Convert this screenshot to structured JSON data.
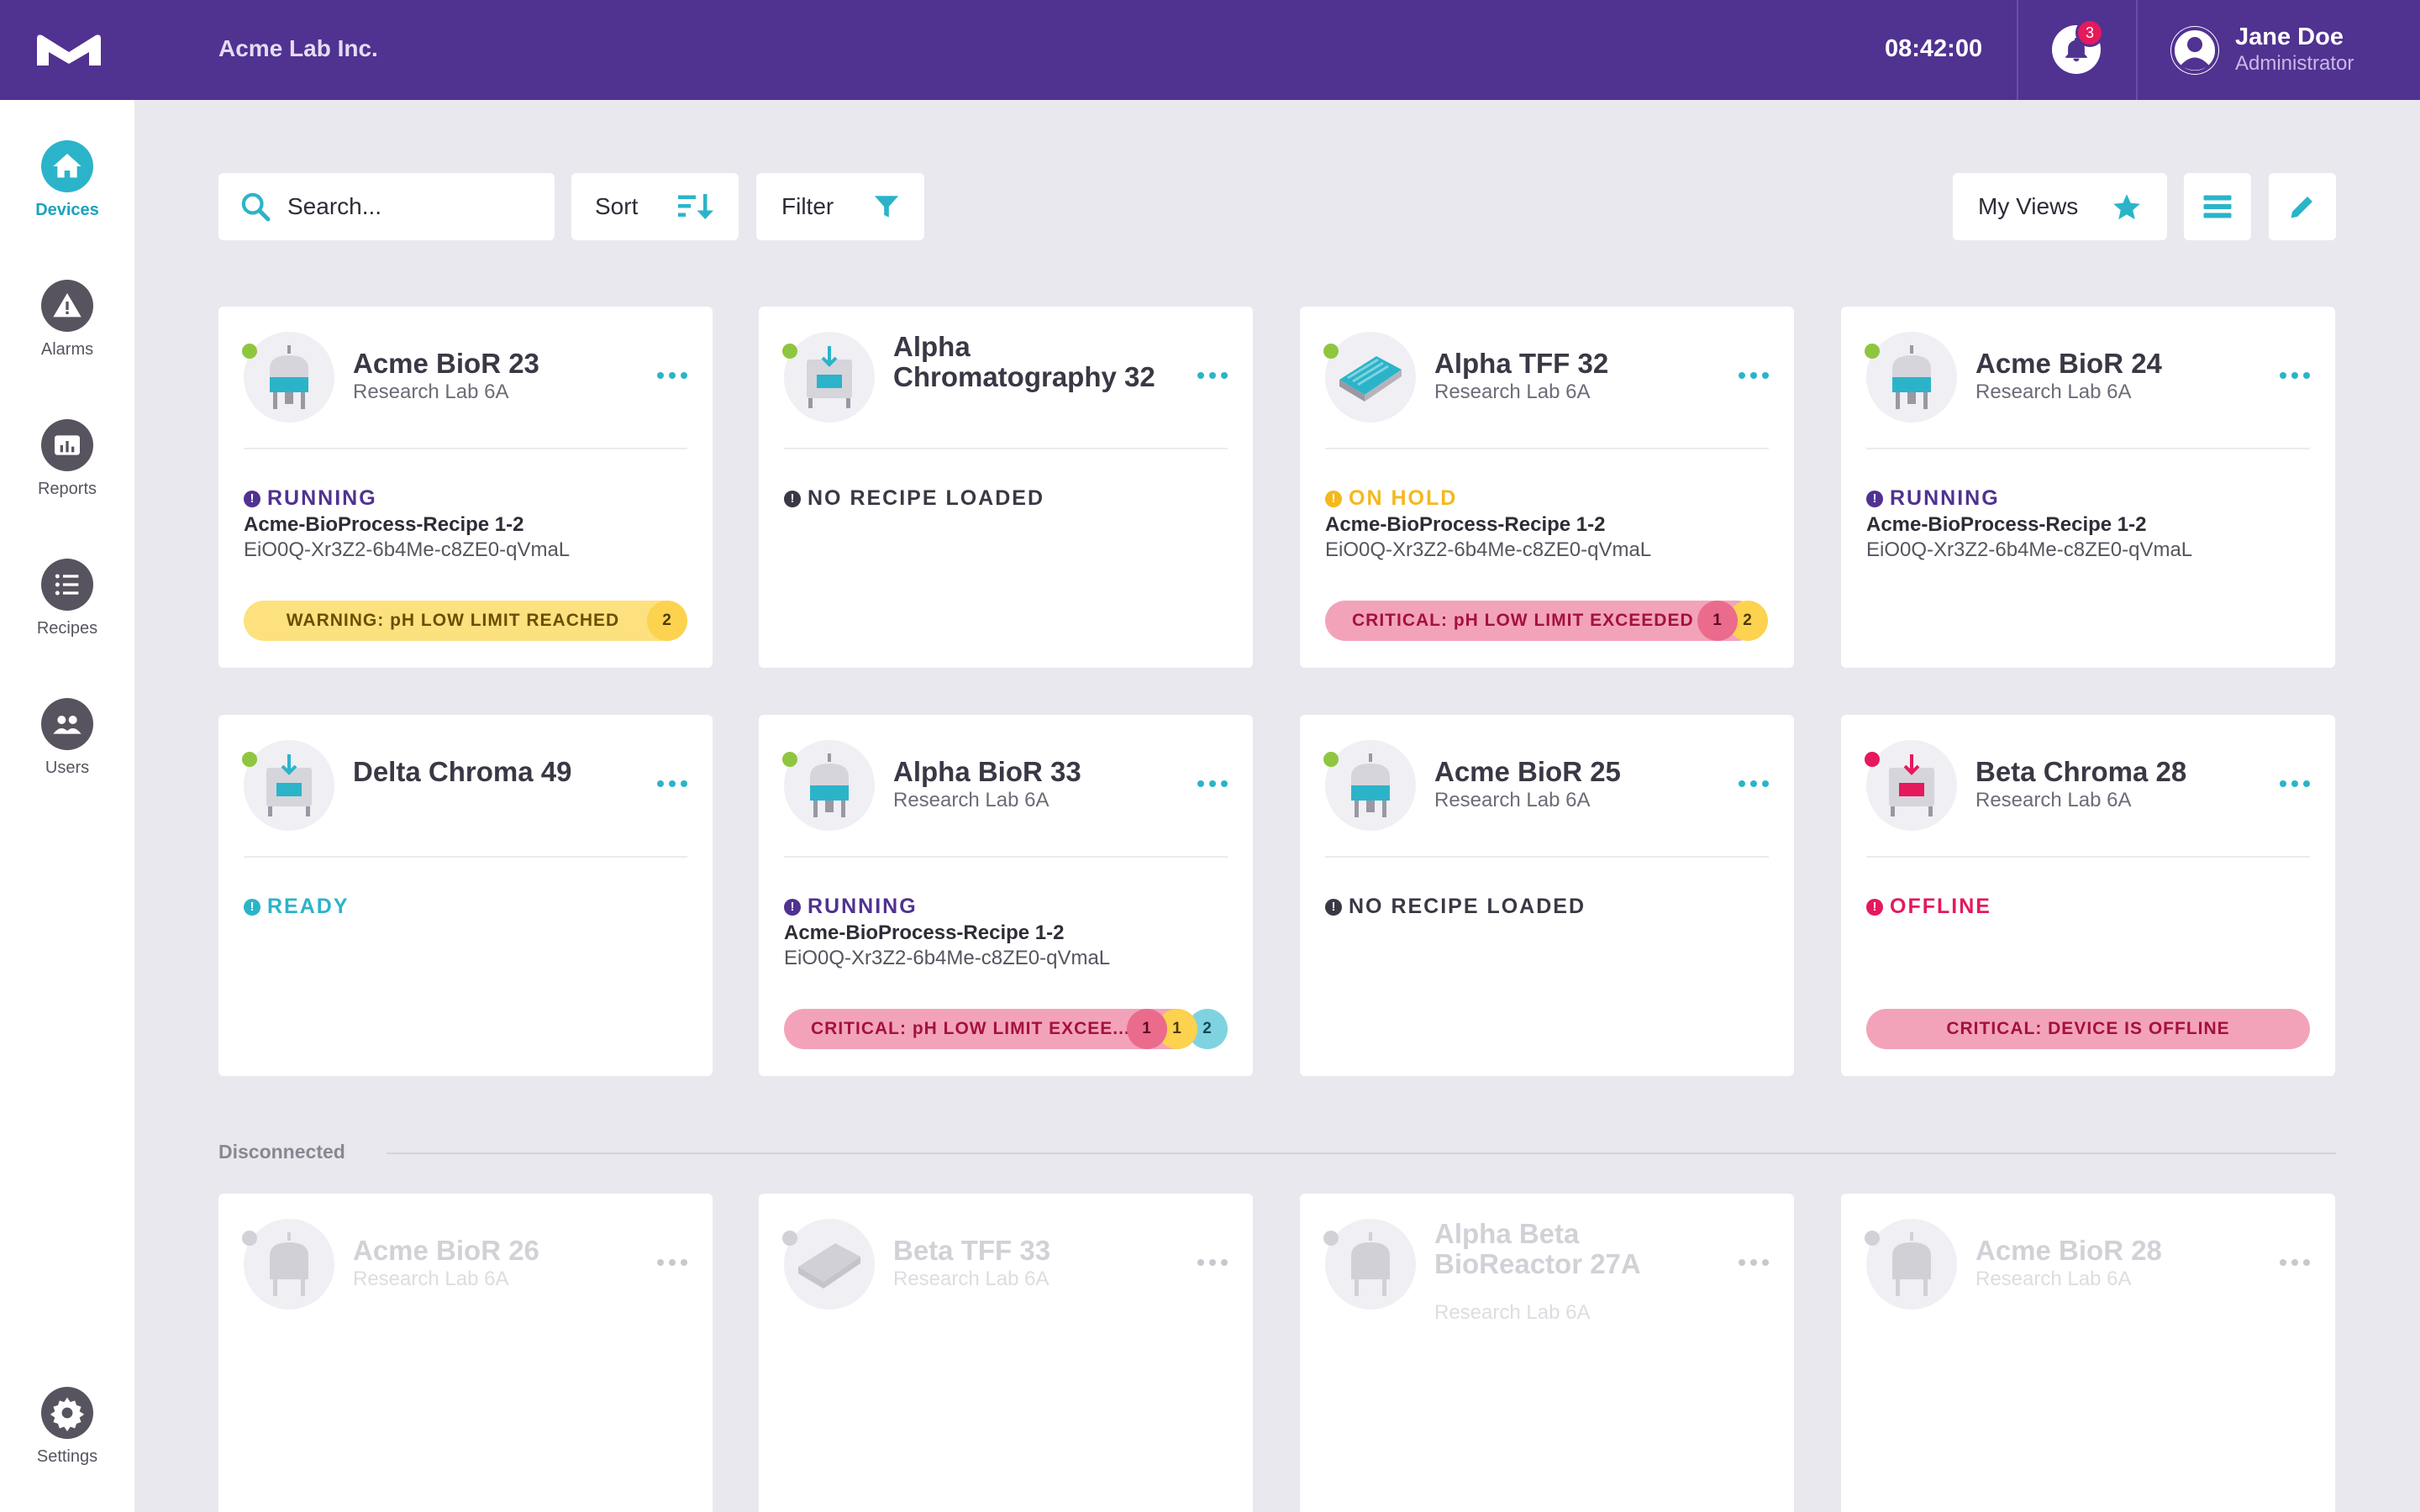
{
  "topbar": {
    "company": "Acme Lab Inc.",
    "time": "08:42:00",
    "notifications_count": "3",
    "user_name": "Jane Doe",
    "user_role": "Administrator"
  },
  "sidebar": {
    "items": [
      {
        "label": "Devices",
        "icon": "home-icon",
        "active": true
      },
      {
        "label": "Alarms",
        "icon": "warning-icon",
        "active": false
      },
      {
        "label": "Reports",
        "icon": "reports-icon",
        "active": false
      },
      {
        "label": "Recipes",
        "icon": "list-icon",
        "active": false
      },
      {
        "label": "Users",
        "icon": "users-icon",
        "active": false
      }
    ],
    "settings_label": "Settings"
  },
  "toolbar": {
    "search_placeholder": "Search...",
    "sort_label": "Sort",
    "filter_label": "Filter",
    "views_label": "My Views"
  },
  "colors": {
    "brand": "#503291",
    "accent": "#2bb4c9",
    "running": "#503291",
    "on_hold": "#f5b81c",
    "ready": "#2bb4c9",
    "offline": "#e5195c",
    "critical_bg": "#f3a3b9",
    "warning_bg": "#fde17f"
  },
  "devices": [
    {
      "name": "Acme BioR 23",
      "location": "Research Lab 6A",
      "status": "RUNNING",
      "recipe": "Acme-BioProcess-Recipe 1-2",
      "recipe_id": "EiO0Q-Xr3Z2-6b4Me-c8ZE0-qVmaL",
      "alert": "WARNING: pH LOW LIMIT REACHED",
      "badges": [
        "2"
      ]
    },
    {
      "name": "Alpha Chromatography 32",
      "status": "NO RECIPE LOADED"
    },
    {
      "name": "Alpha TFF 32",
      "location": "Research Lab 6A",
      "status": "ON HOLD",
      "recipe": "Acme-BioProcess-Recipe 1-2",
      "recipe_id": "EiO0Q-Xr3Z2-6b4Me-c8ZE0-qVmaL",
      "alert": "CRITICAL: pH LOW LIMIT EXCEEDED",
      "badges": [
        "1",
        "2"
      ]
    },
    {
      "name": "Acme BioR 24",
      "location": "Research Lab 6A",
      "status": "RUNNING",
      "recipe": "Acme-BioProcess-Recipe 1-2",
      "recipe_id": "EiO0Q-Xr3Z2-6b4Me-c8ZE0-qVmaL"
    },
    {
      "name": "Delta Chroma 49",
      "status": "READY"
    },
    {
      "name": "Alpha BioR 33",
      "location": "Research Lab 6A",
      "status": "RUNNING",
      "recipe": "Acme-BioProcess-Recipe 1-2",
      "recipe_id": "EiO0Q-Xr3Z2-6b4Me-c8ZE0-qVmaL",
      "alert": "CRITICAL: pH LOW LIMIT EXCEE...",
      "badges": [
        "1",
        "1",
        "2"
      ]
    },
    {
      "name": "Acme BioR 25",
      "location": "Research Lab 6A",
      "status": "NO RECIPE LOADED"
    },
    {
      "name": "Beta Chroma 28",
      "location": "Research Lab 6A",
      "status": "OFFLINE",
      "alert": "CRITICAL: DEVICE IS OFFLINE"
    }
  ],
  "disconnected_label": "Disconnected",
  "disconnected_devices": [
    {
      "name": "Acme BioR 26",
      "location": "Research Lab 6A"
    },
    {
      "name": "Beta TFF 33",
      "location": "Research Lab 6A"
    },
    {
      "name": "Alpha Beta BioReactor 27A",
      "location": "Research Lab 6A"
    },
    {
      "name": "Acme BioR 28",
      "location": "Research Lab 6A"
    }
  ]
}
